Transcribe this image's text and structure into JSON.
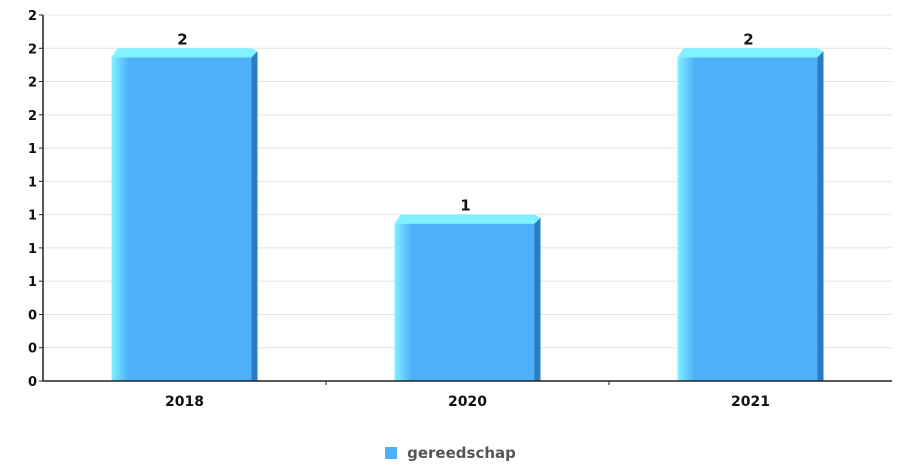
{
  "chart_data": {
    "type": "bar",
    "categories": [
      "2018",
      "2020",
      "2021"
    ],
    "series": [
      {
        "name": "gereedschap",
        "values": [
          2,
          1,
          2
        ],
        "color": "#4fb0fa"
      }
    ],
    "data_labels": [
      "2",
      "1",
      "2"
    ],
    "ylim": [
      0,
      2.2
    ],
    "y_ticks": [
      0,
      0.2,
      0.4,
      0.6,
      0.8,
      1.0,
      1.2,
      1.4,
      1.6,
      1.8,
      2.0,
      2.2
    ],
    "y_tick_labels": [
      "0",
      "0",
      "0",
      "1",
      "1",
      "1",
      "1",
      "1",
      "2",
      "2",
      "2",
      "2"
    ],
    "grid": true,
    "legend_position": "bottom-center",
    "colors": {
      "bar_top": "#7ff2ff",
      "bar_front": "#4fb0fa",
      "bar_side": "#2c7bc3",
      "grid": "#e4e4e4",
      "axis": "#222222"
    }
  },
  "legend": {
    "label": "gereedschap"
  }
}
